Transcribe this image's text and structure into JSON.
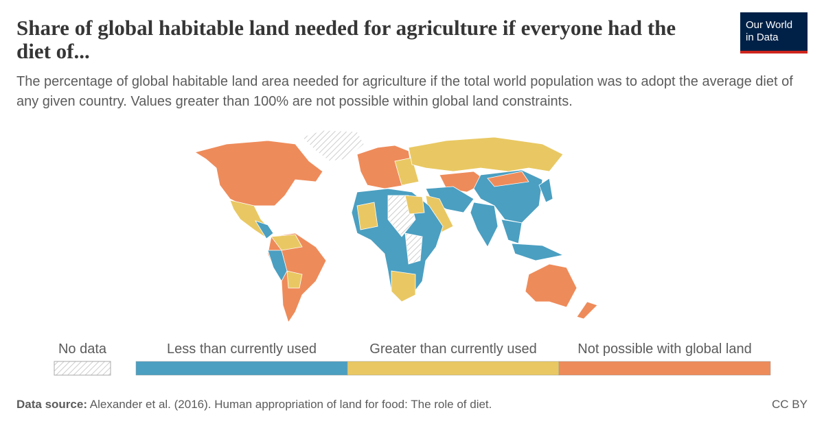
{
  "header": {
    "title": "Share of global habitable land needed for agriculture if everyone had the diet of...",
    "subtitle": "The percentage of global habitable land area needed for agriculture if the total world population was to adopt the average diet of any given country. Values greater than 100% are not possible within global land constraints.",
    "logo": [
      "Our World",
      "in Data"
    ]
  },
  "legend": {
    "no_data": "No data",
    "items": [
      {
        "label": "Less than currently used",
        "color": "#4b9fc1"
      },
      {
        "label": "Greater than currently used",
        "color": "#e9c863"
      },
      {
        "label": "Not possible with global land",
        "color": "#ee8b5a"
      }
    ]
  },
  "footer": {
    "source_label": "Data source:",
    "source": "Alexander et al. (2016). Human appropriation of land for food: The role of diet.",
    "license": "CC BY"
  }
}
